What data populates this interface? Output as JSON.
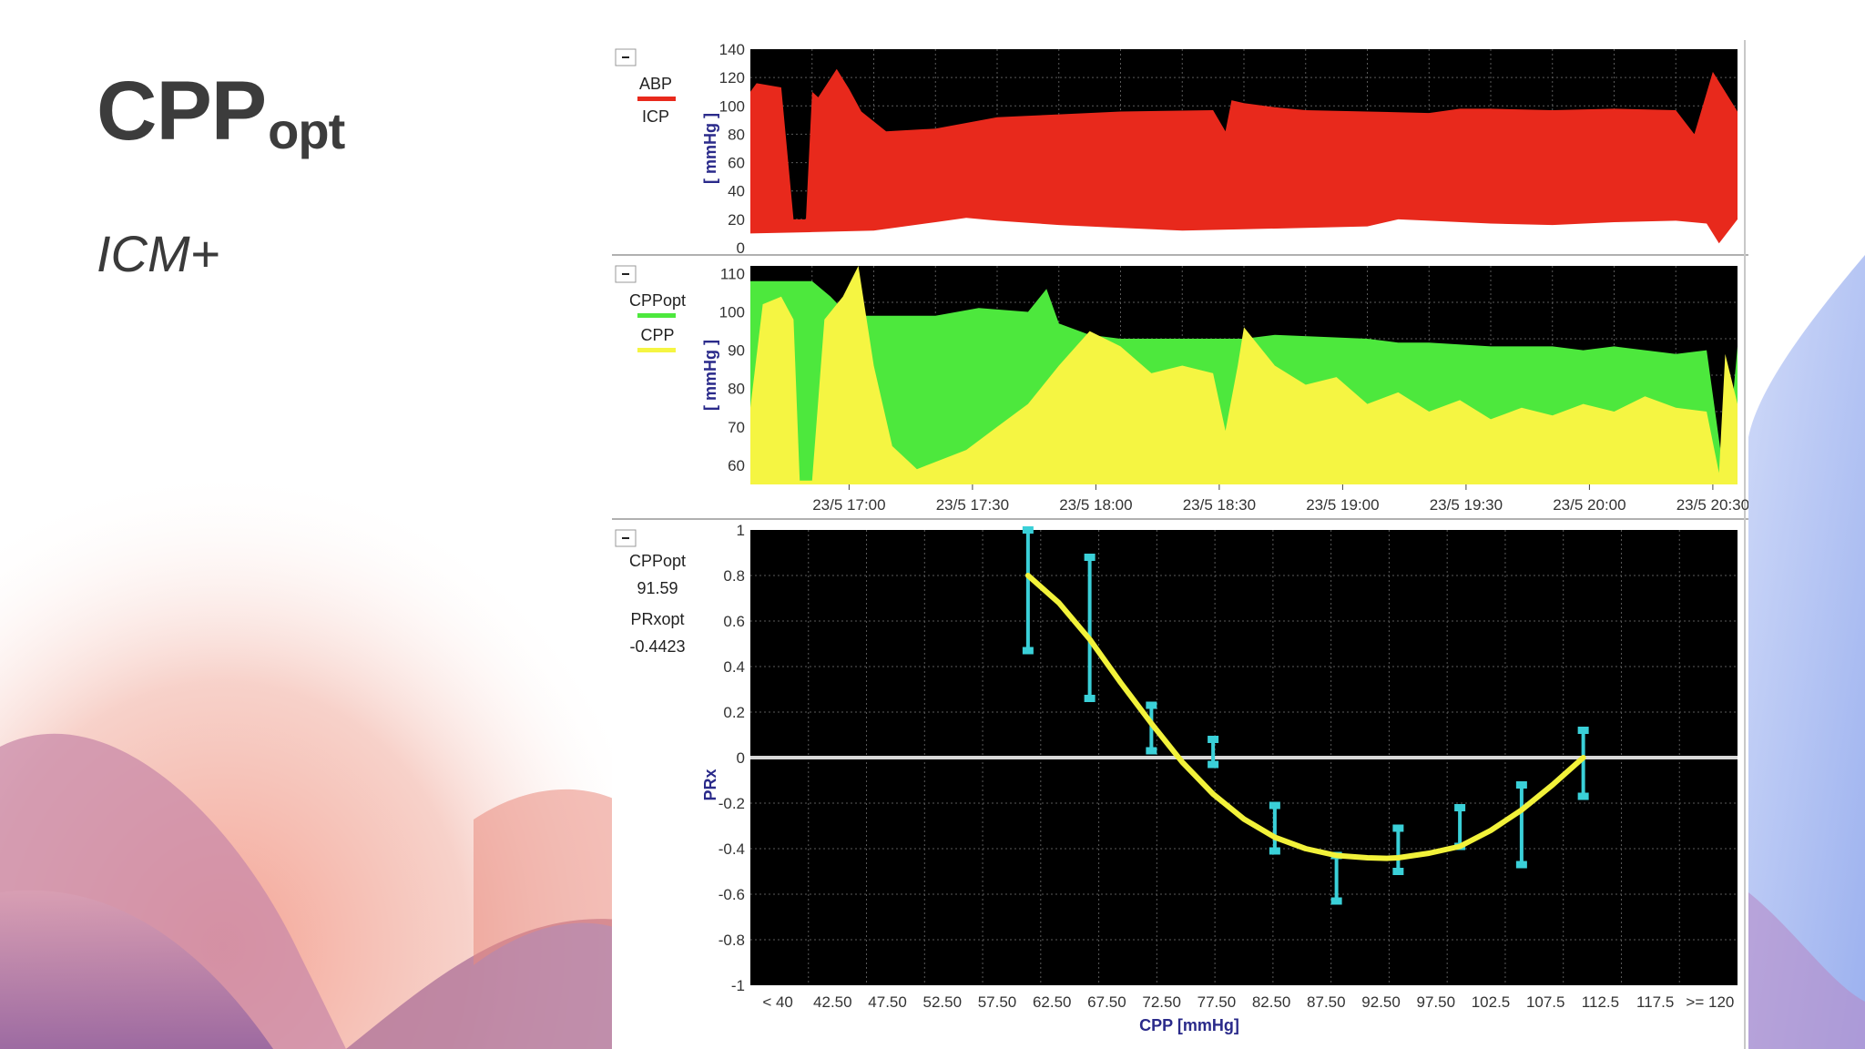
{
  "slide": {
    "title_main": "CPP",
    "title_sub": "opt",
    "subtitle": "ICM+"
  },
  "colors": {
    "abp_fill": "#e8291c",
    "icp_fill": "#ffffff",
    "cppopt_fill": "#4de83d",
    "cpp_fill": "#f5f542",
    "curve": "#f2f23a",
    "error_bars": "#3ad0d8",
    "zero_line": "#d8d8d8",
    "plot_bg": "#000000"
  },
  "chart_data": [
    {
      "id": "abp_icp",
      "type": "area",
      "legend": [
        "ABP",
        "ICP"
      ],
      "ylabel": "[ mmHg ]",
      "ylim": [
        0,
        140
      ],
      "yticks": [
        "0",
        "20",
        "40",
        "60",
        "80",
        "100",
        "120",
        "140"
      ],
      "xlim": [
        0,
        16
      ],
      "series": [
        {
          "name": "ABP",
          "x": [
            0,
            0.1,
            0.5,
            0.7,
            0.9,
            1.0,
            1.1,
            1.4,
            1.6,
            1.8,
            2.2,
            3.0,
            4.0,
            5.0,
            6.0,
            7.5,
            7.7,
            7.8,
            8.0,
            8.5,
            9.0,
            10.0,
            11.0,
            11.5,
            12.0,
            13.0,
            14.0,
            15.0,
            15.3,
            15.6,
            16.0
          ],
          "values": [
            110,
            116,
            113,
            20,
            20,
            110,
            106,
            126,
            112,
            96,
            82,
            84,
            92,
            94,
            96,
            97,
            82,
            104,
            102,
            99,
            97,
            96,
            95,
            98,
            98,
            97,
            98,
            97,
            80,
            124,
            96
          ]
        },
        {
          "name": "ICP",
          "x": [
            0,
            1,
            2,
            3,
            3.5,
            4,
            5,
            6,
            7,
            8,
            9,
            10,
            10.5,
            11,
            12,
            13,
            14,
            15,
            15.5,
            15.7,
            16
          ],
          "values": [
            10,
            11,
            12,
            18,
            21,
            19,
            16,
            14,
            12,
            13,
            14,
            15,
            20,
            19,
            17,
            16,
            18,
            19,
            17,
            3,
            20
          ]
        }
      ]
    },
    {
      "id": "cppopt_cpp",
      "type": "area",
      "legend": [
        "CPPopt",
        "CPP"
      ],
      "ylabel": "[ mmHg ]",
      "ylim": [
        55,
        112
      ],
      "yticks": [
        "60",
        "70",
        "80",
        "90",
        "100",
        "110"
      ],
      "xlim": [
        0,
        16
      ],
      "x_tick_labels": [
        "23/5 17:00",
        "23/5 17:30",
        "23/5 18:00",
        "23/5 18:30",
        "23/5 19:00",
        "23/5 19:30",
        "23/5 20:00",
        "23/5 20:30"
      ],
      "series": [
        {
          "name": "CPPopt",
          "x": [
            0,
            1.0,
            1.3,
            1.6,
            2.0,
            3.0,
            3.7,
            4.5,
            4.8,
            5.0,
            5.5,
            6.0,
            8.0,
            8.5,
            10.0,
            10.5,
            11.0,
            12.0,
            13.0,
            13.5,
            14.0,
            15.0,
            15.5,
            15.8,
            16.0
          ],
          "values": [
            108,
            108,
            104,
            99,
            99,
            99,
            101,
            100,
            106,
            97,
            94,
            93,
            93,
            94,
            93,
            92,
            92,
            91,
            91,
            90,
            91,
            89,
            90,
            55,
            91
          ]
        },
        {
          "name": "CPP",
          "x": [
            0,
            0.2,
            0.5,
            0.7,
            0.8,
            1.0,
            1.2,
            1.5,
            1.75,
            2.0,
            2.3,
            2.7,
            3.5,
            4.0,
            4.5,
            5.0,
            5.5,
            6.0,
            6.5,
            7.0,
            7.5,
            7.7,
            7.9,
            8.0,
            8.5,
            9.0,
            9.5,
            10.0,
            10.5,
            11.0,
            11.5,
            12.0,
            12.5,
            13.0,
            13.5,
            14.0,
            14.5,
            15.0,
            15.5,
            15.7,
            15.8,
            16.0
          ],
          "values": [
            75,
            102,
            104,
            98,
            56,
            56,
            98,
            104,
            112,
            86,
            65,
            59,
            64,
            70,
            76,
            86,
            95,
            91,
            84,
            86,
            84,
            69,
            86,
            96,
            86,
            81,
            83,
            76,
            79,
            74,
            77,
            72,
            75,
            73,
            76,
            74,
            78,
            75,
            74,
            58,
            89,
            76
          ]
        }
      ]
    },
    {
      "id": "prx_vs_cpp",
      "type": "line",
      "legend_labels": {
        "cppopt_label": "CPPopt",
        "cppopt_value": "91.59",
        "prxopt_label": "PRxopt",
        "prxopt_value": "-0.4423"
      },
      "xlabel": "CPP [mmHg]",
      "ylabel": "PRx",
      "ylim": [
        -1,
        1
      ],
      "yticks": [
        "-1",
        "-0.8",
        "-0.6",
        "-0.4",
        "-0.2",
        "0",
        "0.2",
        "0.4",
        "0.6",
        "0.8",
        "1"
      ],
      "xlim": [
        40,
        120
      ],
      "x_tick_labels": [
        "< 40",
        "42.50",
        "47.50",
        "52.50",
        "57.50",
        "62.50",
        "67.50",
        "72.50",
        "77.50",
        "82.50",
        "87.50",
        "92.50",
        "97.50",
        "102.5",
        "107.5",
        "112.5",
        "117.5",
        ">= 120"
      ],
      "fit_curve": {
        "x": [
          62.5,
          65,
          67.5,
          70,
          72.5,
          75,
          77.5,
          80,
          82.5,
          85,
          87.5,
          90,
          91.59,
          92.5,
          95,
          97.5,
          100,
          102.5,
          105,
          107.5
        ],
        "y": [
          0.8,
          0.68,
          0.52,
          0.33,
          0.15,
          -0.02,
          -0.16,
          -0.27,
          -0.35,
          -0.4,
          -0.43,
          -0.44,
          -0.4423,
          -0.44,
          -0.42,
          -0.39,
          -0.32,
          -0.23,
          -0.12,
          0.0
        ]
      },
      "error_bars": [
        {
          "x": 62.5,
          "lo": 0.47,
          "hi": 1.0
        },
        {
          "x": 67.5,
          "lo": 0.26,
          "hi": 0.88
        },
        {
          "x": 72.5,
          "lo": 0.03,
          "hi": 0.23
        },
        {
          "x": 77.5,
          "lo": -0.03,
          "hi": 0.08
        },
        {
          "x": 82.5,
          "lo": -0.41,
          "hi": -0.21
        },
        {
          "x": 87.5,
          "lo": -0.63,
          "hi": -0.43
        },
        {
          "x": 92.5,
          "lo": -0.5,
          "hi": -0.31
        },
        {
          "x": 97.5,
          "lo": -0.39,
          "hi": -0.22
        },
        {
          "x": 102.5,
          "lo": -0.47,
          "hi": -0.12
        },
        {
          "x": 107.5,
          "lo": -0.17,
          "hi": 0.12
        }
      ]
    }
  ]
}
